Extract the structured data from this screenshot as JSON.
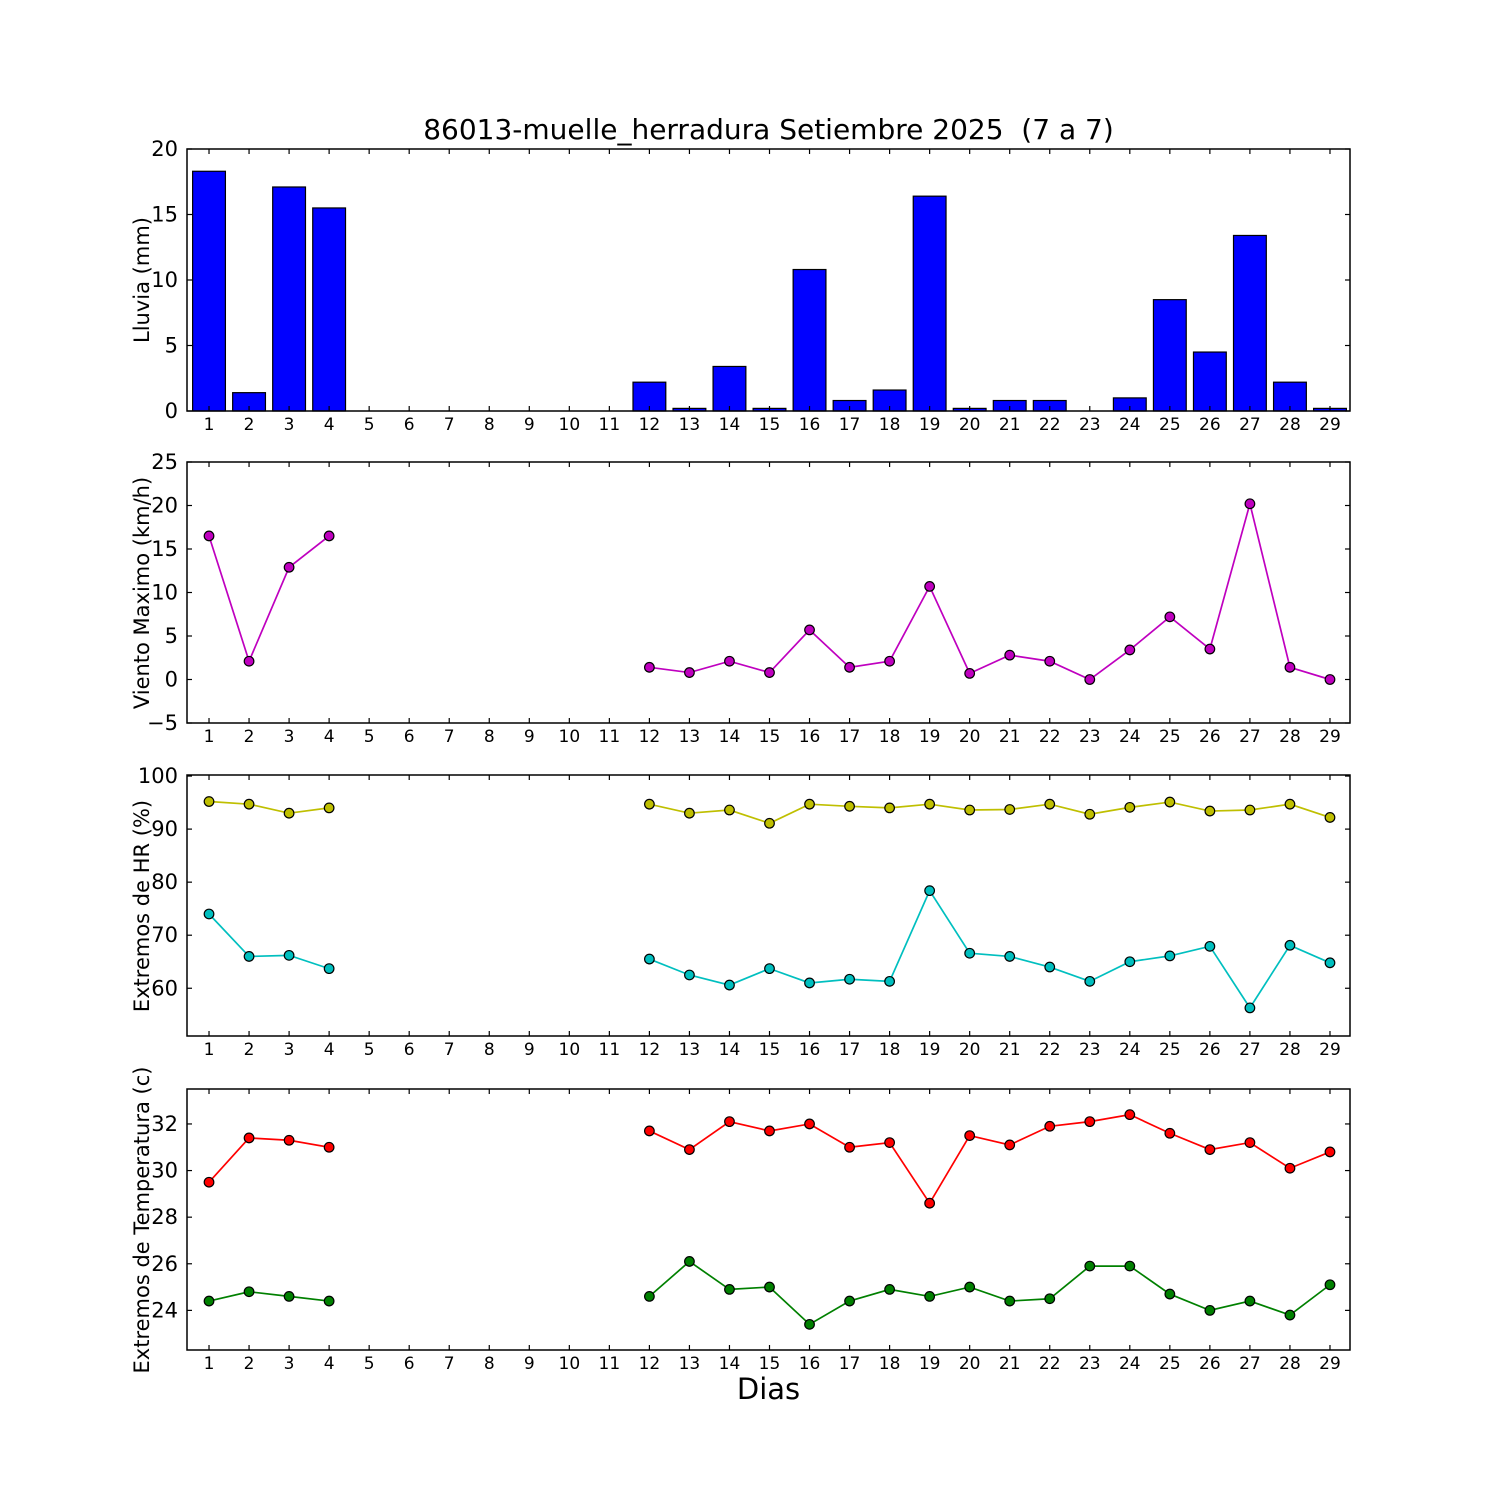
{
  "figure": {
    "title": "86013-muelle_herradura Setiembre 2025  (7 a 7)",
    "xlabel": "Dias",
    "background": "#ffffff",
    "frame_color": "#000000"
  },
  "x_categories": [
    1,
    2,
    3,
    4,
    5,
    6,
    7,
    8,
    9,
    10,
    11,
    12,
    13,
    14,
    15,
    16,
    17,
    18,
    19,
    20,
    21,
    22,
    23,
    24,
    25,
    26,
    27,
    28,
    29
  ],
  "chart_data": [
    {
      "type": "bar",
      "panel": "lluvia",
      "ylabel": "Lluvia (mm)",
      "color": "#0000ff",
      "bar_edge": "#000000",
      "ylim": [
        0,
        20
      ],
      "yticks": [
        0,
        5,
        10,
        15,
        20
      ],
      "values": [
        18.3,
        1.4,
        17.1,
        15.5,
        null,
        null,
        null,
        null,
        null,
        null,
        null,
        2.2,
        0.2,
        3.4,
        0.2,
        10.8,
        0.8,
        1.6,
        16.4,
        0.2,
        0.8,
        0.8,
        0,
        1.0,
        8.5,
        4.5,
        13.4,
        2.2,
        0.2
      ]
    },
    {
      "type": "line",
      "panel": "viento",
      "ylabel": "Viento Maximo (km/h)",
      "ylim": [
        -5,
        25
      ],
      "yticks": [
        -5,
        0,
        5,
        10,
        15,
        20,
        25
      ],
      "series": [
        {
          "name": "viento-maximo",
          "color": "#bf00bf",
          "values": [
            16.5,
            2.1,
            12.9,
            16.5,
            null,
            null,
            null,
            null,
            null,
            null,
            null,
            1.4,
            0.8,
            2.1,
            0.8,
            5.7,
            1.4,
            2.1,
            10.7,
            0.7,
            2.8,
            2.1,
            0.0,
            3.4,
            7.2,
            3.5,
            20.2,
            1.4,
            0.0
          ]
        }
      ]
    },
    {
      "type": "line",
      "panel": "hr",
      "ylabel": "Extremos de HR (%)",
      "ylim": [
        51,
        100.2
      ],
      "yticks": [
        60,
        70,
        80,
        90,
        100
      ],
      "series": [
        {
          "name": "hr-max",
          "color": "#bfbf00",
          "values": [
            95.2,
            94.7,
            93.0,
            94.0,
            null,
            null,
            null,
            null,
            null,
            null,
            null,
            94.7,
            93.0,
            93.6,
            91.1,
            94.7,
            94.3,
            94.0,
            94.7,
            93.6,
            93.7,
            94.7,
            92.8,
            94.1,
            95.1,
            93.4,
            93.6,
            94.7,
            92.2
          ]
        },
        {
          "name": "hr-min",
          "color": "#00bfbf",
          "values": [
            74.0,
            66.0,
            66.2,
            63.7,
            null,
            null,
            null,
            null,
            null,
            null,
            null,
            65.5,
            62.5,
            60.6,
            63.7,
            61.0,
            61.7,
            61.3,
            78.4,
            66.6,
            66.0,
            64.0,
            61.3,
            65.0,
            66.1,
            67.9,
            56.3,
            68.1,
            64.8
          ]
        }
      ]
    },
    {
      "type": "line",
      "panel": "temperatura",
      "ylabel": "Extremos de Temperatura (c)",
      "ylim": [
        22.3,
        33.5
      ],
      "yticks": [
        24,
        26,
        28,
        30,
        32
      ],
      "series": [
        {
          "name": "temp-max",
          "color": "#ff0000",
          "values": [
            29.5,
            31.4,
            31.3,
            31.0,
            null,
            null,
            null,
            null,
            null,
            null,
            null,
            31.7,
            30.9,
            32.1,
            31.7,
            32.0,
            31.0,
            31.2,
            28.6,
            31.5,
            31.1,
            31.9,
            32.1,
            32.4,
            31.6,
            30.9,
            31.2,
            30.1,
            30.8
          ]
        },
        {
          "name": "temp-min",
          "color": "#008000",
          "values": [
            24.4,
            24.8,
            24.6,
            24.4,
            null,
            null,
            null,
            null,
            null,
            null,
            null,
            24.6,
            26.1,
            24.9,
            25.0,
            23.4,
            24.4,
            24.9,
            24.6,
            25.0,
            24.4,
            24.5,
            25.9,
            25.9,
            24.7,
            24.0,
            24.4,
            23.8,
            25.1
          ]
        }
      ]
    }
  ]
}
